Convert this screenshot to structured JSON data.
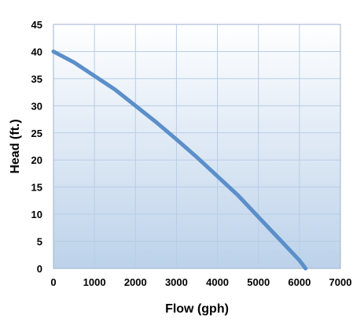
{
  "chart_data": {
    "type": "line",
    "title": "",
    "xlabel": "Flow (gph)",
    "ylabel": "Head (ft.)",
    "xlim": [
      0,
      7000
    ],
    "ylim": [
      0,
      45
    ],
    "x_ticks": [
      0,
      1000,
      2000,
      3000,
      4000,
      5000,
      6000,
      7000
    ],
    "y_ticks": [
      0,
      5,
      10,
      15,
      20,
      25,
      30,
      35,
      40,
      45
    ],
    "grid": true,
    "legend": "none",
    "colors": {
      "line": "#5b8fc9",
      "grid": "#b8cde6",
      "fill_top": "#ffffff",
      "fill_bottom": "#bcd2ea"
    },
    "series": [
      {
        "x": [
          0,
          500,
          1000,
          1500,
          2000,
          2500,
          3000,
          3500,
          4000,
          4500,
          5000,
          5500,
          6000,
          6150
        ],
        "y": [
          40,
          38,
          35.5,
          33,
          30,
          27,
          23.8,
          20.5,
          17,
          13.5,
          9.5,
          5.5,
          1.5,
          0
        ]
      }
    ]
  }
}
